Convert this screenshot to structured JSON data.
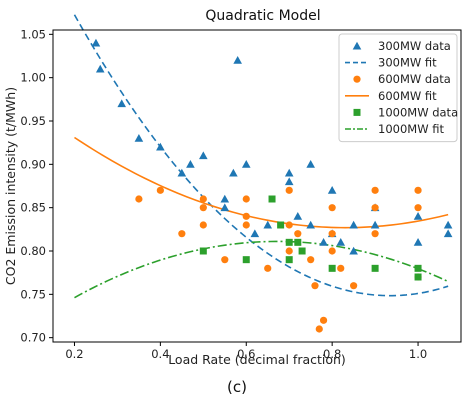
{
  "chart_data": {
    "type": "scatter",
    "title": "Quadratic Model",
    "xlabel": "Load Rate (decimal fraction)",
    "ylabel": "CO2 Emission intensity (t/MWh)",
    "caption": "(c)",
    "xlim": [
      0.15,
      1.1
    ],
    "ylim": [
      0.695,
      1.055
    ],
    "xticks": [
      "0.2",
      "0.4",
      "0.6",
      "0.8",
      "1.0"
    ],
    "yticks": [
      "0.70",
      "0.75",
      "0.80",
      "0.85",
      "0.90",
      "0.95",
      "1.00",
      "1.05"
    ],
    "grid": false,
    "legend_position": "top-right",
    "legend": [
      {
        "label": "300MW data",
        "kind": "marker",
        "series": "s300"
      },
      {
        "label": "300MW fit",
        "kind": "line",
        "series": "s300"
      },
      {
        "label": "600MW data",
        "kind": "marker",
        "series": "s600"
      },
      {
        "label": "600MW fit",
        "kind": "line",
        "series": "s600"
      },
      {
        "label": "1000MW data",
        "kind": "marker",
        "series": "s1000"
      },
      {
        "label": "1000MW fit",
        "kind": "line",
        "series": "s1000"
      }
    ],
    "series": [
      {
        "id": "s300",
        "name": "300MW data",
        "fit_name": "300MW fit",
        "marker": "triangle",
        "fit_style": "dashed",
        "color": "#1f77b4",
        "points": [
          [
            0.25,
            1.04
          ],
          [
            0.26,
            1.01
          ],
          [
            0.31,
            0.97
          ],
          [
            0.35,
            0.93
          ],
          [
            0.4,
            0.92
          ],
          [
            0.45,
            0.89
          ],
          [
            0.47,
            0.9
          ],
          [
            0.5,
            0.91
          ],
          [
            0.55,
            0.86
          ],
          [
            0.55,
            0.85
          ],
          [
            0.57,
            0.89
          ],
          [
            0.58,
            1.02
          ],
          [
            0.6,
            0.9
          ],
          [
            0.65,
            0.83
          ],
          [
            0.7,
            0.88
          ],
          [
            0.7,
            0.89
          ],
          [
            0.72,
            0.84
          ],
          [
            0.75,
            0.9
          ],
          [
            0.75,
            0.83
          ],
          [
            0.78,
            0.81
          ],
          [
            0.8,
            0.87
          ],
          [
            0.8,
            0.82
          ],
          [
            0.82,
            0.81
          ],
          [
            0.85,
            0.83
          ],
          [
            0.85,
            0.8
          ],
          [
            0.9,
            0.83
          ],
          [
            0.9,
            0.85
          ],
          [
            1.0,
            0.81
          ],
          [
            1.0,
            0.84
          ],
          [
            1.07,
            0.83
          ],
          [
            1.07,
            0.82
          ],
          [
            0.62,
            0.82
          ]
        ],
        "fit": {
          "x_range": [
            0.2,
            1.07
          ],
          "coefficients": [
            1.273,
            -1.122,
            0.6
          ]
        }
      },
      {
        "id": "s600",
        "name": "600MW data",
        "fit_name": "600MW fit",
        "marker": "circle",
        "fit_style": "solid",
        "color": "#ff7f0e",
        "points": [
          [
            0.35,
            0.86
          ],
          [
            0.4,
            0.87
          ],
          [
            0.45,
            0.82
          ],
          [
            0.5,
            0.86
          ],
          [
            0.5,
            0.85
          ],
          [
            0.5,
            0.83
          ],
          [
            0.55,
            0.79
          ],
          [
            0.6,
            0.86
          ],
          [
            0.6,
            0.84
          ],
          [
            0.6,
            0.83
          ],
          [
            0.65,
            0.78
          ],
          [
            0.7,
            0.87
          ],
          [
            0.7,
            0.83
          ],
          [
            0.7,
            0.8
          ],
          [
            0.72,
            0.82
          ],
          [
            0.75,
            0.79
          ],
          [
            0.76,
            0.76
          ],
          [
            0.77,
            0.71
          ],
          [
            0.78,
            0.72
          ],
          [
            0.8,
            0.85
          ],
          [
            0.8,
            0.82
          ],
          [
            0.8,
            0.8
          ],
          [
            0.82,
            0.78
          ],
          [
            0.85,
            0.76
          ],
          [
            0.9,
            0.87
          ],
          [
            0.9,
            0.85
          ],
          [
            0.9,
            0.82
          ],
          [
            1.0,
            0.87
          ],
          [
            1.0,
            0.85
          ],
          [
            1.0,
            0.77
          ]
        ],
        "fit": {
          "x_range": [
            0.2,
            1.07
          ],
          "coefficients": [
            1.0075,
            -0.435,
            0.262
          ]
        }
      },
      {
        "id": "s1000",
        "name": "1000MW data",
        "fit_name": "1000MW fit",
        "marker": "square",
        "fit_style": "dashdot",
        "color": "#2ca02c",
        "points": [
          [
            0.5,
            0.8
          ],
          [
            0.6,
            0.79
          ],
          [
            0.66,
            0.86
          ],
          [
            0.68,
            0.83
          ],
          [
            0.7,
            0.81
          ],
          [
            0.7,
            0.79
          ],
          [
            0.72,
            0.81
          ],
          [
            0.73,
            0.8
          ],
          [
            0.8,
            0.78
          ],
          [
            0.9,
            0.78
          ],
          [
            1.0,
            0.78
          ],
          [
            1.0,
            0.77
          ]
        ],
        "fit": {
          "x_range": [
            0.2,
            1.07
          ],
          "coefficients": [
            0.6795,
            0.3917,
            -0.2916
          ]
        }
      }
    ]
  }
}
